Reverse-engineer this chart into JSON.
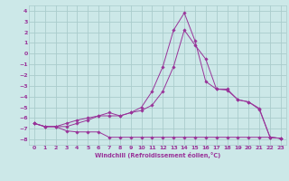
{
  "xlabel": "Windchill (Refroidissement éolien,°C)",
  "background_color": "#cce8e8",
  "grid_color": "#aacccc",
  "line_color": "#993399",
  "x": [
    0,
    1,
    2,
    3,
    4,
    5,
    6,
    7,
    8,
    9,
    10,
    11,
    12,
    13,
    14,
    15,
    16,
    17,
    18,
    19,
    20,
    21,
    22,
    23
  ],
  "line1": [
    -6.5,
    -6.8,
    -6.8,
    -6.8,
    -6.5,
    -6.2,
    -5.8,
    -5.5,
    -5.8,
    -5.5,
    -5.0,
    -3.5,
    -1.2,
    2.2,
    3.8,
    1.2,
    -2.6,
    -3.3,
    -3.3,
    -4.3,
    -4.5,
    -5.2,
    -7.8,
    -7.9
  ],
  "line2": [
    -6.5,
    -6.8,
    -6.8,
    -6.5,
    -6.2,
    -6.0,
    -5.8,
    -5.8,
    -5.8,
    -5.5,
    -5.3,
    -4.8,
    -3.5,
    -1.2,
    2.2,
    0.8,
    -0.5,
    -3.3,
    -3.4,
    -4.3,
    -4.5,
    -5.1,
    -7.8,
    -7.9
  ],
  "line3": [
    -6.5,
    -6.8,
    -6.8,
    -7.2,
    -7.3,
    -7.3,
    -7.3,
    -7.8,
    -7.8,
    -7.8,
    -7.8,
    -7.8,
    -7.8,
    -7.8,
    -7.8,
    -7.8,
    -7.8,
    -7.8,
    -7.8,
    -7.8,
    -7.8,
    -7.8,
    -7.8,
    -7.9
  ],
  "ylim": [
    -8.5,
    4.5
  ],
  "xlim": [
    -0.5,
    23.5
  ],
  "yticks": [
    -8,
    -7,
    -6,
    -5,
    -4,
    -3,
    -2,
    -1,
    0,
    1,
    2,
    3,
    4
  ],
  "xticks": [
    0,
    1,
    2,
    3,
    4,
    5,
    6,
    7,
    8,
    9,
    10,
    11,
    12,
    13,
    14,
    15,
    16,
    17,
    18,
    19,
    20,
    21,
    22,
    23
  ]
}
